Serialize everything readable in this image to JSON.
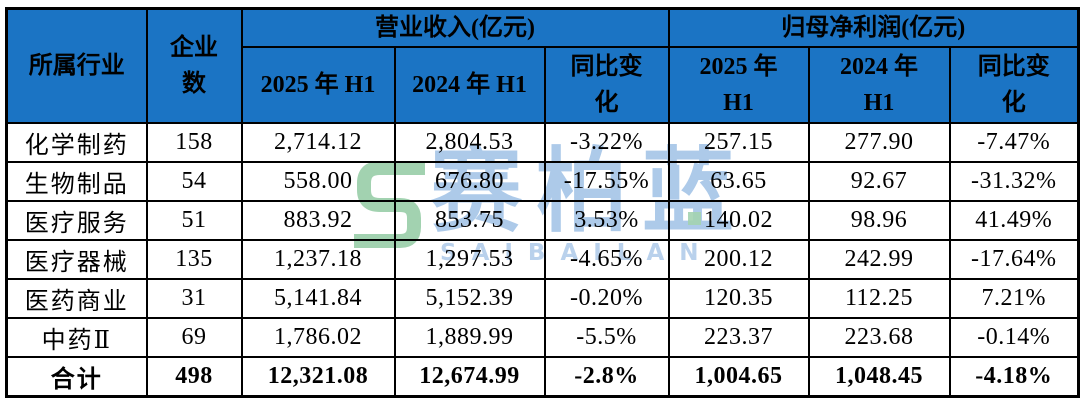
{
  "colors": {
    "header_bg": "#1B74C4",
    "border": "#000000",
    "watermark_blue": "#A9C7E8",
    "watermark_green": "#9DD0AC"
  },
  "table": {
    "header": {
      "industry": "所属行业",
      "company_count": "企业\n数",
      "revenue_group": "营业收入(亿元)",
      "profit_group": "归母净利润(亿元)",
      "revenue_sub": [
        "2025 年 H1",
        "2024 年 H1",
        "同比变\n化"
      ],
      "profit_sub": [
        "2025 年\nH1",
        "2024 年\nH1",
        "同比变\n化"
      ]
    },
    "column_keys": [
      "industry",
      "company-count",
      "revenue-2025h1",
      "revenue-2024h1",
      "revenue-yoy-change",
      "profit-2025h1",
      "profit-2024h1",
      "profit-yoy-change"
    ]
  },
  "chart_data": {
    "type": "table",
    "title": "",
    "column_groups": [
      {
        "label": "营业收入(亿元)",
        "columns": [
          "2025年H1",
          "2024年H1",
          "同比变化"
        ]
      },
      {
        "label": "归母净利润(亿元)",
        "columns": [
          "2025年H1",
          "2024年H1",
          "同比变化"
        ]
      }
    ],
    "columns": [
      "所属行业",
      "企业数",
      "营业收入2025年H1",
      "营业收入2024年H1",
      "营业收入同比变化",
      "归母净利润2025年H1",
      "归母净利润2024年H1",
      "归母净利润同比变化"
    ],
    "rows": [
      [
        "化学制药",
        "158",
        "2,714.12",
        "2,804.53",
        "-3.22%",
        "257.15",
        "277.90",
        "-7.47%"
      ],
      [
        "生物制品",
        "54",
        "558.00",
        "676.80",
        "-17.55%",
        "63.65",
        "92.67",
        "-31.32%"
      ],
      [
        "医疗服务",
        "51",
        "883.92",
        "853.75",
        "3.53%",
        "140.02",
        "98.96",
        "41.49%"
      ],
      [
        "医疗器械",
        "135",
        "1,237.18",
        "1,297.53",
        "-4.65%",
        "200.12",
        "242.99",
        "-17.64%"
      ],
      [
        "医药商业",
        "31",
        "5,141.84",
        "5,152.39",
        "-0.20%",
        "120.35",
        "112.25",
        "7.21%"
      ],
      [
        "中药Ⅱ",
        "69",
        "1,786.02",
        "1,889.99",
        "-5.5%",
        "223.37",
        "223.68",
        "-0.14%"
      ]
    ],
    "total_row": [
      "合计",
      "498",
      "12,321.08",
      "12,674.99",
      "-2.8%",
      "1,004.65",
      "1,048.45",
      "-4.18%"
    ]
  },
  "watermark": {
    "text_cn": "赛柏蓝",
    "text_en": "SAIBAILAN"
  }
}
